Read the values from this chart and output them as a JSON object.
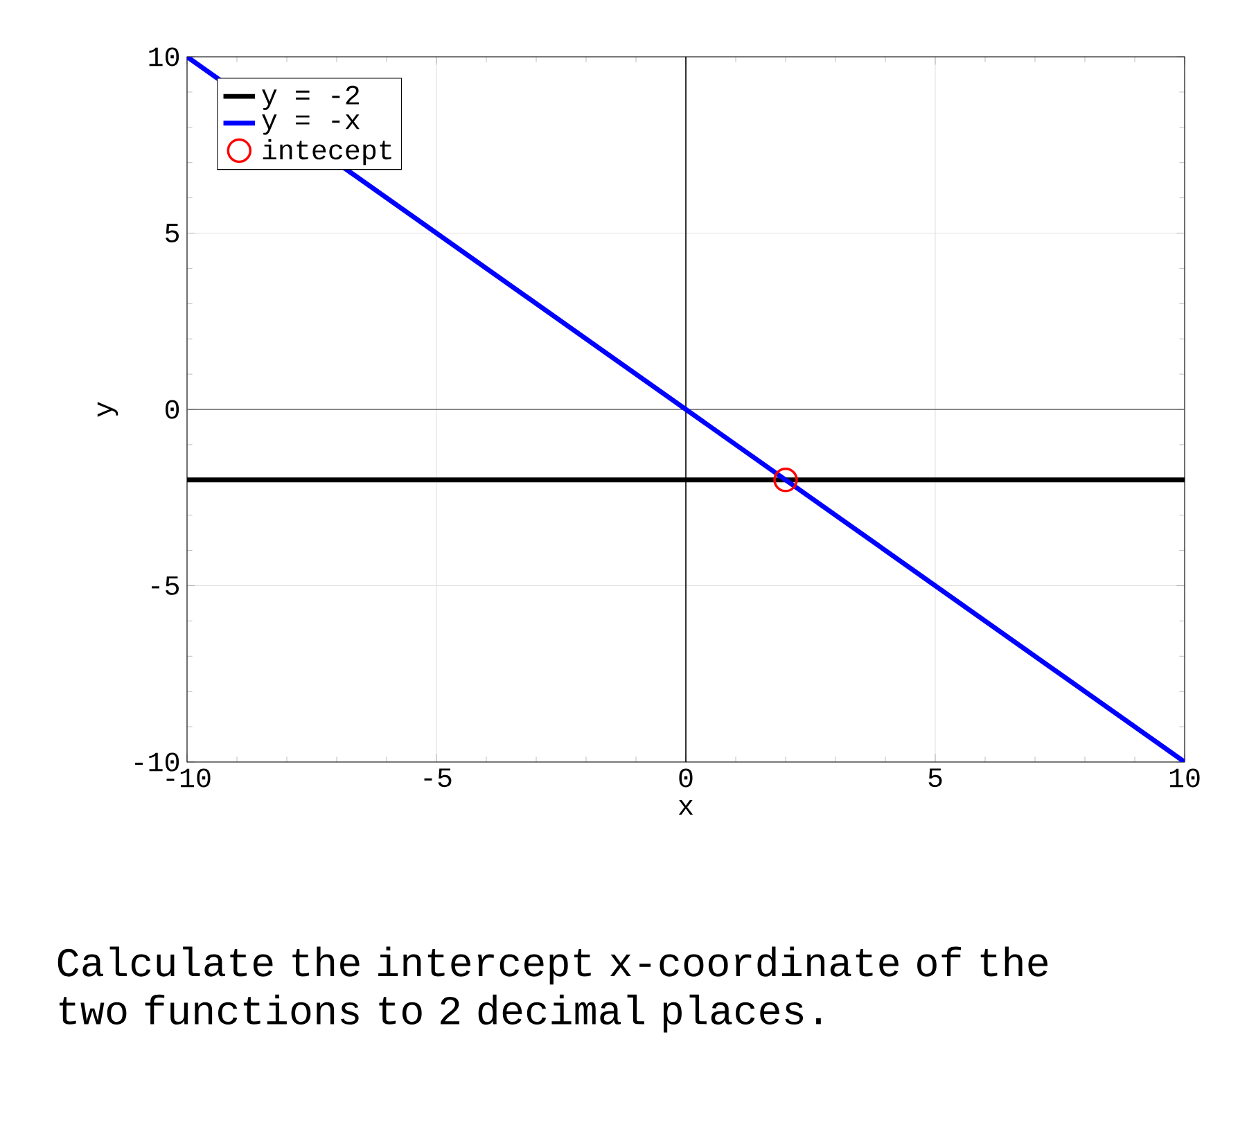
{
  "chart_data": {
    "type": "line",
    "xlabel": "x",
    "ylabel": "y",
    "xlim": [
      -10,
      10
    ],
    "ylim": [
      -10,
      10
    ],
    "xticks": [
      -10,
      -5,
      0,
      5,
      10
    ],
    "yticks": [
      -10,
      -5,
      0,
      5,
      10
    ],
    "grid": true,
    "legend": "top left",
    "series": [
      {
        "name": "y = -2",
        "color": "#000000",
        "x": [
          -10,
          10
        ],
        "values": [
          -2,
          -2
        ]
      },
      {
        "name": "y = -x",
        "color": "#0000ff",
        "x": [
          -10,
          10
        ],
        "values": [
          10,
          -10
        ]
      },
      {
        "name": "intecept",
        "type": "scatter",
        "marker": "circle",
        "color": "#ff0000",
        "x": [
          2
        ],
        "values": [
          -2
        ]
      }
    ],
    "ref_lines": [
      {
        "axis": "x",
        "value": 0,
        "color": "#000000"
      },
      {
        "axis": "y",
        "value": 0,
        "color": "#666666"
      }
    ],
    "annotations": [
      "Calculate the intercept x-coordinate of the two functions to 2 decimal places."
    ]
  }
}
